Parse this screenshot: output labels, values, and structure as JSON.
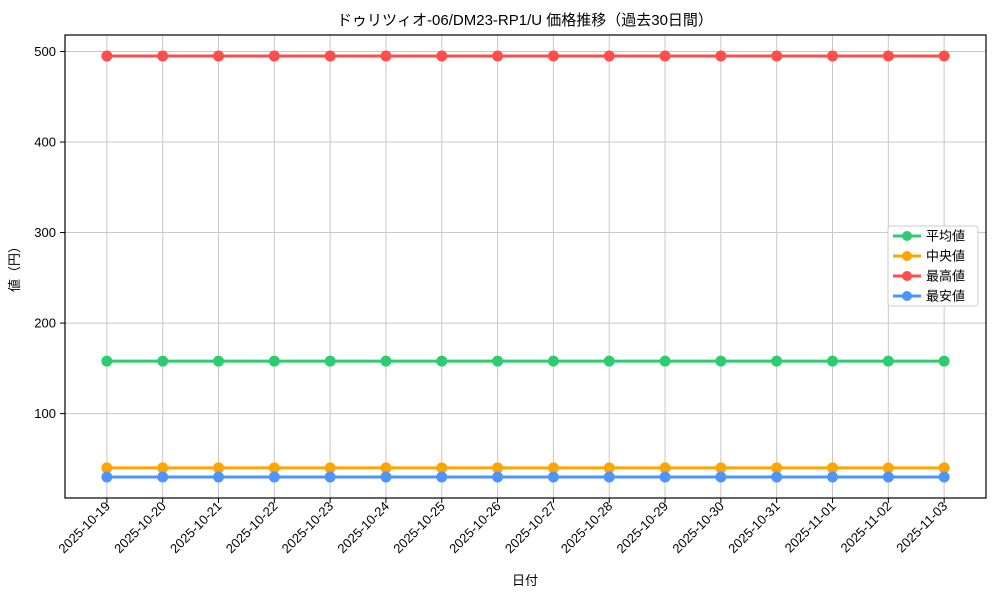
{
  "chart_data": {
    "type": "line",
    "title": "ドゥリツィオ-06/DM23-RP1/U 価格推移（過去30日間）",
    "xlabel": "日付",
    "ylabel": "値（円）",
    "categories": [
      "2025-10-19",
      "2025-10-20",
      "2025-10-21",
      "2025-10-22",
      "2025-10-23",
      "2025-10-24",
      "2025-10-25",
      "2025-10-26",
      "2025-10-27",
      "2025-10-28",
      "2025-10-29",
      "2025-10-30",
      "2025-10-31",
      "2025-11-01",
      "2025-11-02",
      "2025-11-03"
    ],
    "series": [
      {
        "key": "average",
        "name": "平均値",
        "color": "#2ecc71",
        "values": [
          158,
          158,
          158,
          158,
          158,
          158,
          158,
          158,
          158,
          158,
          158,
          158,
          158,
          158,
          158,
          158
        ]
      },
      {
        "key": "median",
        "name": "中央値",
        "color": "#ffa502",
        "values": [
          40,
          40,
          40,
          40,
          40,
          40,
          40,
          40,
          40,
          40,
          40,
          40,
          40,
          40,
          40,
          40
        ]
      },
      {
        "key": "max",
        "name": "最高値",
        "color": "#ff4d4d",
        "values": [
          495,
          495,
          495,
          495,
          495,
          495,
          495,
          495,
          495,
          495,
          495,
          495,
          495,
          495,
          495,
          495
        ]
      },
      {
        "key": "min",
        "name": "最安値",
        "color": "#4d94ff",
        "values": [
          30,
          30,
          30,
          30,
          30,
          30,
          30,
          30,
          30,
          30,
          30,
          30,
          30,
          30,
          30,
          30
        ]
      }
    ],
    "yticks": [
      100,
      200,
      300,
      400,
      500
    ],
    "ylim": [
      6.75,
      518.25
    ],
    "grid": true,
    "legend_position": "center-right",
    "colors": {
      "background": "#ffffff",
      "grid": "#c8c8c8",
      "axis": "#000000",
      "legend_border": "#cccccc"
    }
  }
}
